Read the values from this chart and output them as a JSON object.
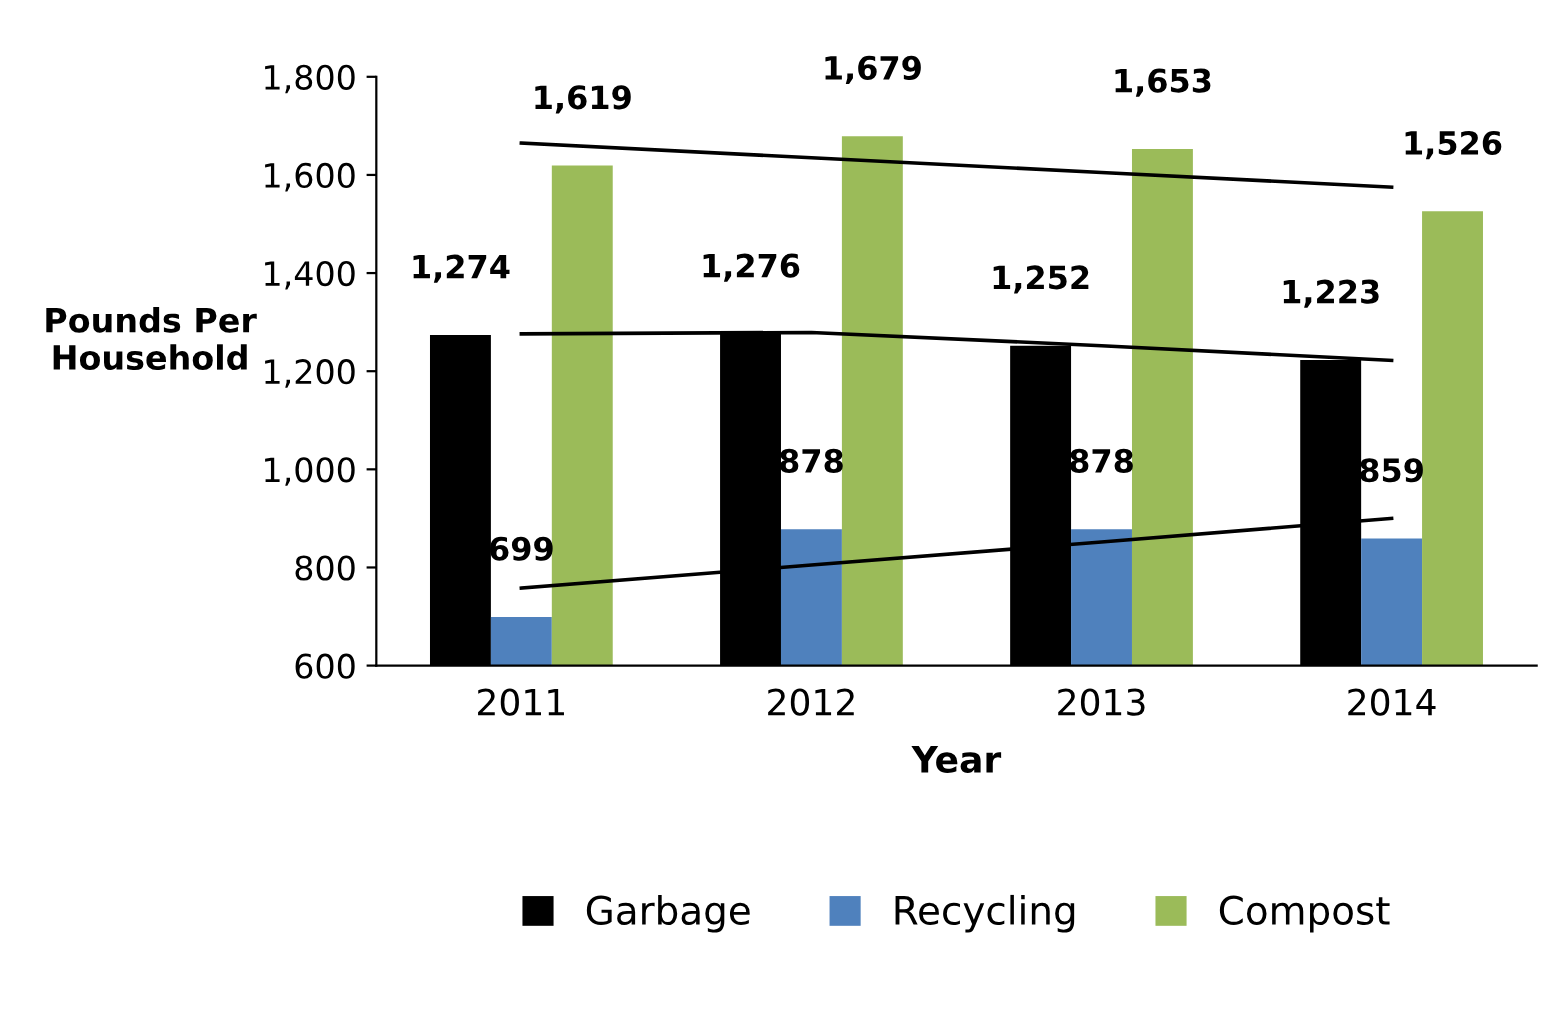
{
  "chart_data": {
    "type": "bar",
    "xlabel": "Year",
    "ylabel": "Pounds Per\nHousehold",
    "categories": [
      "2011",
      "2012",
      "2013",
      "2014"
    ],
    "series": [
      {
        "name": "Garbage",
        "color": "#000000",
        "values": [
          1274,
          1276,
          1252,
          1223
        ],
        "value_labels": [
          "1,274",
          "1,276",
          "1,252",
          "1,223"
        ]
      },
      {
        "name": "Recycling",
        "color": "#4f81bd",
        "values": [
          699,
          878,
          878,
          859
        ],
        "value_labels": [
          "699",
          "878",
          "878",
          "859"
        ]
      },
      {
        "name": "Compost",
        "color": "#9bbb59",
        "values": [
          1619,
          1679,
          1653,
          1526
        ],
        "value_labels": [
          "1,619",
          "1,679",
          "1,653",
          "1,526"
        ]
      },
      {
        "type": "line",
        "color": "#000000",
        "values": [
          1276,
          1279,
          1252,
          1222
        ]
      },
      {
        "type": "line",
        "color": "#000000",
        "values": [
          758,
          805,
          852,
          900
        ]
      },
      {
        "type": "line",
        "color": "#000000",
        "values": [
          1665,
          1635,
          1605,
          1575
        ]
      }
    ],
    "ylim": [
      600,
      1800
    ],
    "yticks": [
      {
        "value": 600,
        "label": "600"
      },
      {
        "value": 800,
        "label": "800"
      },
      {
        "value": 1000,
        "label": "1,000"
      },
      {
        "value": 1200,
        "label": "1,200"
      },
      {
        "value": 1400,
        "label": "1,400"
      },
      {
        "value": 1600,
        "label": "1,600"
      },
      {
        "value": 1800,
        "label": "1,800"
      }
    ],
    "grid": false,
    "legend": "bottom"
  }
}
